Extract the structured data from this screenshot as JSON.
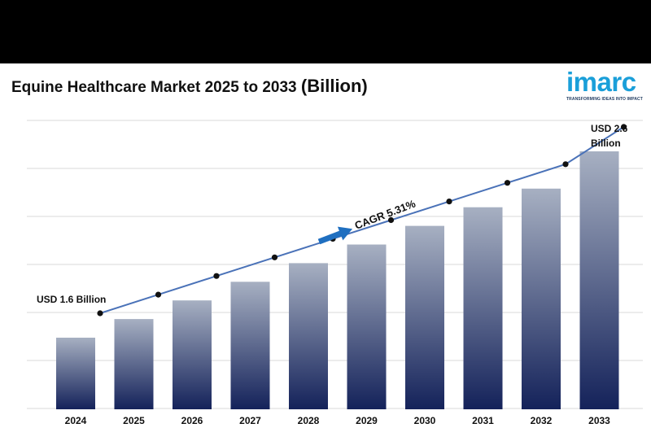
{
  "header": {
    "title": "Equine Healthcare Market 2025 to 2033 ",
    "title_paren": "(Billion)"
  },
  "logo": {
    "word": "imarc",
    "tagline": "TRANSFORMING IDEAS INTO IMPACT",
    "color": "#1a9fd9"
  },
  "chart_data": {
    "type": "bar",
    "categories": [
      "2024",
      "2025",
      "2026",
      "2027",
      "2028",
      "2029",
      "2030",
      "2031",
      "2032",
      "2033"
    ],
    "values": [
      1.6,
      1.7,
      1.8,
      1.9,
      2.0,
      2.1,
      2.2,
      2.3,
      2.4,
      2.6
    ],
    "line_overlay": true,
    "grid": true,
    "annotations": {
      "start": "USD 1.6 Billion",
      "end_line1": "USD 2.6",
      "end_line2": "Billion",
      "cagr": "CAGR 5.31%"
    },
    "colors": {
      "bar_top": "#a7b0c2",
      "bar_bottom": "#14225a",
      "line": "#4a72b8",
      "dot": "#111111",
      "arrow": "#1f6fc0"
    }
  }
}
